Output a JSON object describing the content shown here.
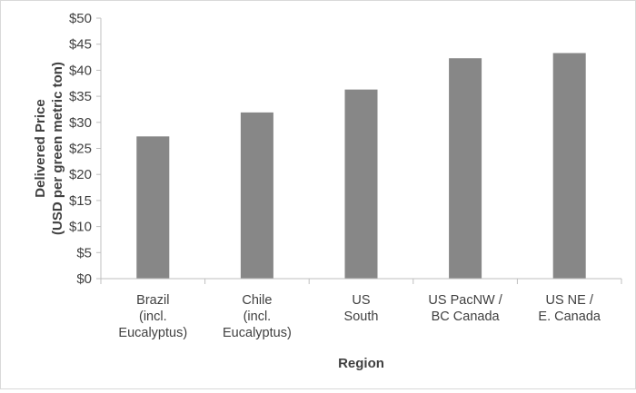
{
  "chart_data": {
    "type": "bar",
    "categories": [
      [
        "Brazil",
        "(incl.",
        "Eucalyptus)"
      ],
      [
        "Chile",
        "(incl.",
        "Eucalyptus)"
      ],
      [
        "US",
        "South"
      ],
      [
        "US PacNW /",
        "BC Canada"
      ],
      [
        "US NE /",
        "E. Canada"
      ]
    ],
    "values": [
      27.3,
      31.9,
      36.3,
      42.3,
      43.3
    ],
    "xlabel": "Region",
    "ylabel": [
      "Delivered Price",
      "(USD per green metric ton)"
    ],
    "ylim": [
      0,
      50
    ],
    "ytick_step": 5,
    "ytick_prefix": "$",
    "grid": false,
    "legend": "none",
    "colors": {
      "bar": "#878787",
      "axis": "#bfbfbf",
      "text": "#404040"
    }
  }
}
